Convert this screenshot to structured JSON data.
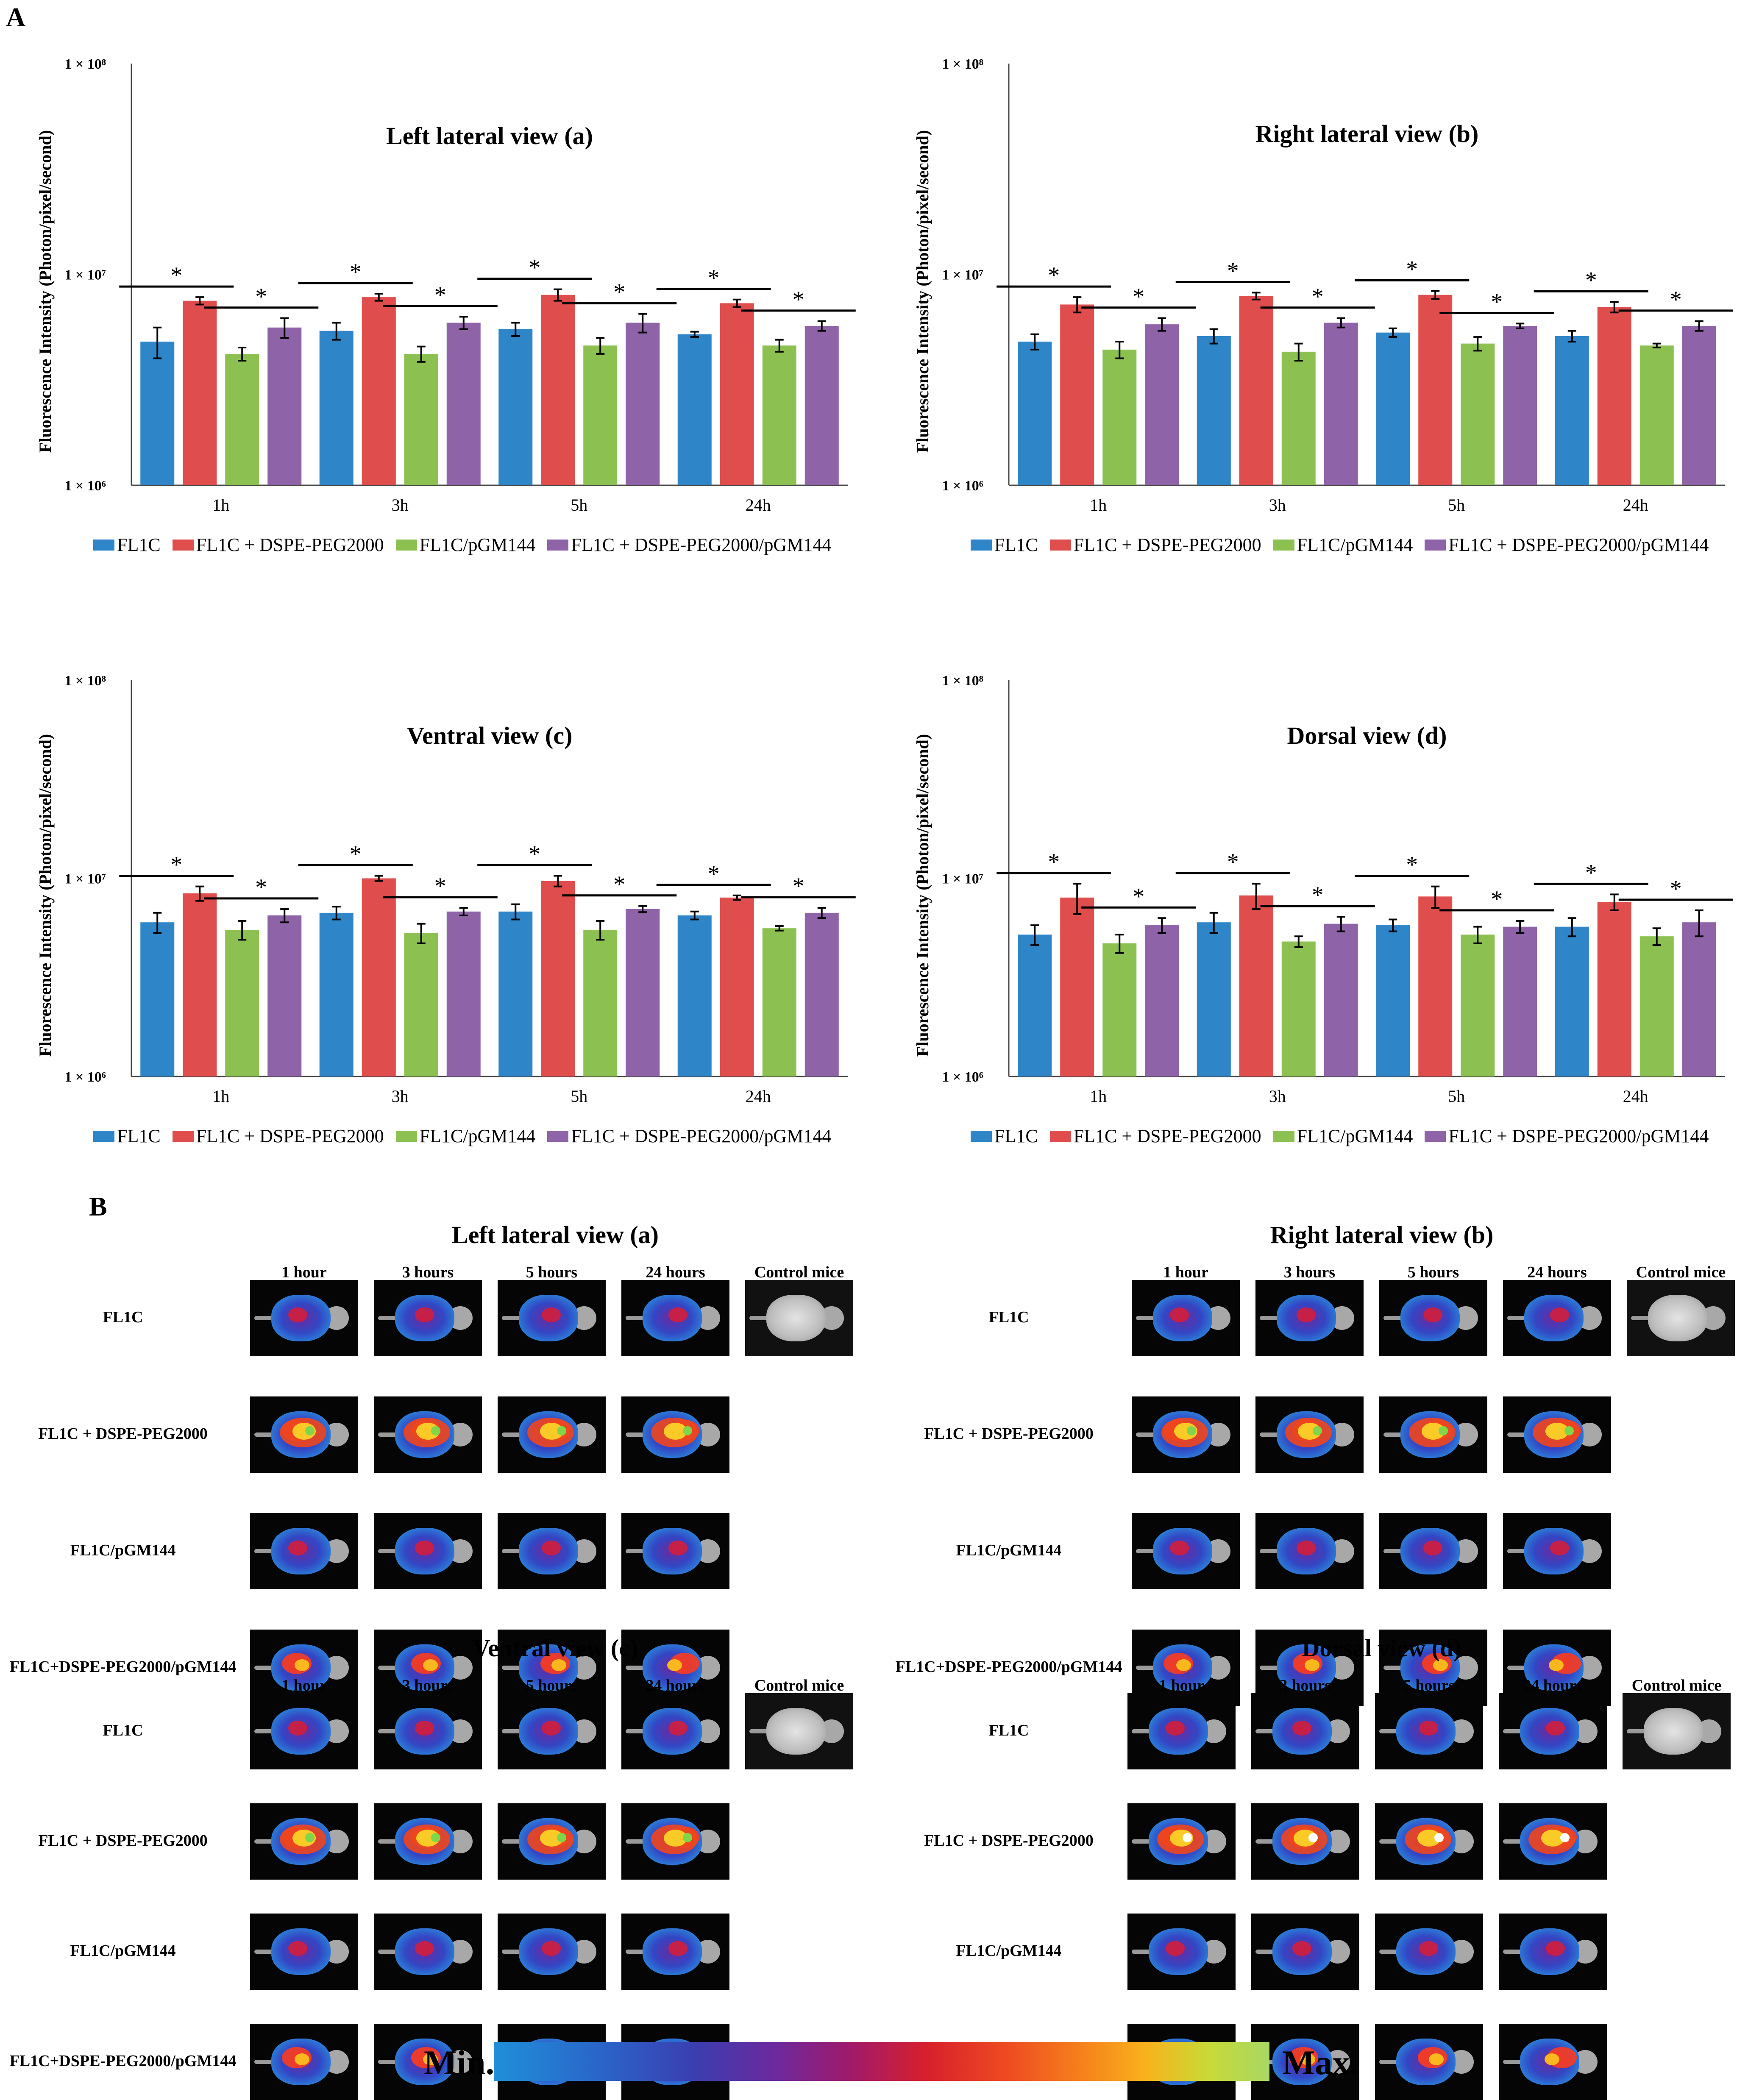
{
  "panel_labels": {
    "a": "A",
    "b": "B"
  },
  "chart_data": [
    {
      "type": "bar",
      "title": "Left lateral view (a)",
      "ylabel": "Fluorescence Intensity (Photon/pixel/second)",
      "yscale": "log",
      "ylim": [
        1000000,
        100000000
      ],
      "yticks": [
        "1 × 10⁶",
        "1 × 10⁷",
        "1 × 10⁸"
      ],
      "categories": [
        "1h",
        "3h",
        "5h",
        "24h"
      ],
      "series": [
        {
          "name": "FL1C",
          "color": "#2e86c8",
          "values": [
            4800000,
            5400000,
            5500000,
            5200000
          ],
          "errors": [
            800000,
            500000,
            400000,
            150000
          ]
        },
        {
          "name": "FL1C + DSPE-PEG2000",
          "color": "#e04d4d",
          "values": [
            7500000,
            7800000,
            8000000,
            7300000
          ],
          "errors": [
            300000,
            300000,
            500000,
            300000
          ]
        },
        {
          "name": "FL1C/pGM144",
          "color": "#8cc152",
          "values": [
            4200000,
            4200000,
            4600000,
            4600000
          ],
          "errors": [
            300000,
            350000,
            400000,
            300000
          ]
        },
        {
          "name": "FL1C + DSPE-PEG2000/pGM144",
          "color": "#8e63a8",
          "values": [
            5600000,
            5900000,
            5900000,
            5700000
          ],
          "errors": [
            600000,
            400000,
            600000,
            300000
          ]
        }
      ],
      "significance": "*"
    },
    {
      "type": "bar",
      "title": "Right lateral view (b)",
      "ylabel": "Fluorescence Intensity (Photon/pixel/second)",
      "yscale": "log",
      "ylim": [
        1000000,
        100000000
      ],
      "yticks": [
        "1 × 10⁶",
        "1 × 10⁷",
        "1 × 10⁸"
      ],
      "categories": [
        "1h",
        "3h",
        "5h",
        "24h"
      ],
      "series": [
        {
          "name": "FL1C",
          "color": "#2e86c8",
          "values": [
            4800000,
            5100000,
            5300000,
            5100000
          ],
          "errors": [
            400000,
            400000,
            250000,
            300000
          ]
        },
        {
          "name": "FL1C + DSPE-PEG2000",
          "color": "#e04d4d",
          "values": [
            7200000,
            7900000,
            8000000,
            7000000
          ],
          "errors": [
            600000,
            300000,
            350000,
            400000
          ]
        },
        {
          "name": "FL1C/pGM144",
          "color": "#8cc152",
          "values": [
            4400000,
            4300000,
            4700000,
            4600000
          ],
          "errors": [
            400000,
            400000,
            350000,
            100000
          ]
        },
        {
          "name": "FL1C + DSPE-PEG2000/pGM144",
          "color": "#8e63a8",
          "values": [
            5800000,
            5900000,
            5700000,
            5700000
          ],
          "errors": [
            400000,
            300000,
            150000,
            300000
          ]
        }
      ],
      "significance": "*"
    },
    {
      "type": "bar",
      "title": "Ventral view (c)",
      "ylabel": "Fluorescence Intensity (Photon/pixel/second)",
      "yscale": "log",
      "ylim": [
        1000000,
        100000000
      ],
      "yticks": [
        "1 × 10⁶",
        "1 × 10⁷",
        "1 × 10⁸"
      ],
      "categories": [
        "1h",
        "3h",
        "5h",
        "24h"
      ],
      "series": [
        {
          "name": "FL1C",
          "color": "#2e86c8",
          "values": [
            6000000,
            6700000,
            6800000,
            6500000
          ],
          "errors": [
            700000,
            500000,
            600000,
            300000
          ]
        },
        {
          "name": "FL1C + DSPE-PEG2000",
          "color": "#e04d4d",
          "values": [
            8400000,
            10000000,
            9700000,
            8000000
          ],
          "errors": [
            700000,
            300000,
            600000,
            200000
          ]
        },
        {
          "name": "FL1C/pGM144",
          "color": "#8cc152",
          "values": [
            5500000,
            5300000,
            5500000,
            5600000
          ],
          "errors": [
            600000,
            600000,
            600000,
            150000
          ]
        },
        {
          "name": "FL1C + DSPE-PEG2000/pGM144",
          "color": "#8e63a8",
          "values": [
            6500000,
            6800000,
            7000000,
            6700000
          ],
          "errors": [
            500000,
            300000,
            250000,
            400000
          ]
        }
      ],
      "significance": "*"
    },
    {
      "type": "bar",
      "title": "Dorsal view (d)",
      "ylabel": "Fluorescence Intensity (Photon/pixel/second)",
      "yscale": "log",
      "ylim": [
        1000000,
        100000000
      ],
      "yticks": [
        "1 × 10⁶",
        "1 × 10⁷",
        "1 × 10⁸"
      ],
      "categories": [
        "1h",
        "3h",
        "5h",
        "24h"
      ],
      "series": [
        {
          "name": "FL1C",
          "color": "#2e86c8",
          "values": [
            5200000,
            6000000,
            5800000,
            5700000
          ],
          "errors": [
            600000,
            700000,
            400000,
            600000
          ]
        },
        {
          "name": "FL1C + DSPE-PEG2000",
          "color": "#e04d4d",
          "values": [
            8000000,
            8200000,
            8100000,
            7600000
          ],
          "errors": [
            1400000,
            1200000,
            1000000,
            700000
          ]
        },
        {
          "name": "FL1C/pGM144",
          "color": "#8cc152",
          "values": [
            4700000,
            4800000,
            5200000,
            5100000
          ],
          "errors": [
            500000,
            300000,
            500000,
            500000
          ]
        },
        {
          "name": "FL1C + DSPE-PEG2000/pGM144",
          "color": "#8e63a8",
          "values": [
            5800000,
            5900000,
            5700000,
            6000000
          ],
          "errors": [
            500000,
            500000,
            400000,
            900000
          ]
        }
      ],
      "significance": "*"
    }
  ],
  "imaging": {
    "groups": [
      {
        "title": "Left lateral view  (a)",
        "view": "lateral"
      },
      {
        "title": "Right lateral view (b)",
        "view": "lateral"
      },
      {
        "title": "Ventral view (c)",
        "view": "ventral"
      },
      {
        "title": "Dorsal view (d)",
        "view": "dorsal"
      }
    ],
    "col_headers": [
      "1 hour",
      "3 hours",
      "5 hours",
      "24 hours",
      "Control mice"
    ],
    "row_labels_lateral": [
      "FL1C",
      "FL1C + DSPE-PEG2000",
      "FL1C/pGM144",
      "FL1C+DSPE-PEG2000/pGM144"
    ],
    "row_intensity": [
      0.35,
      0.9,
      0.3,
      0.5
    ]
  },
  "colorbar": {
    "min_label": "Min.",
    "max_label": "Max."
  }
}
